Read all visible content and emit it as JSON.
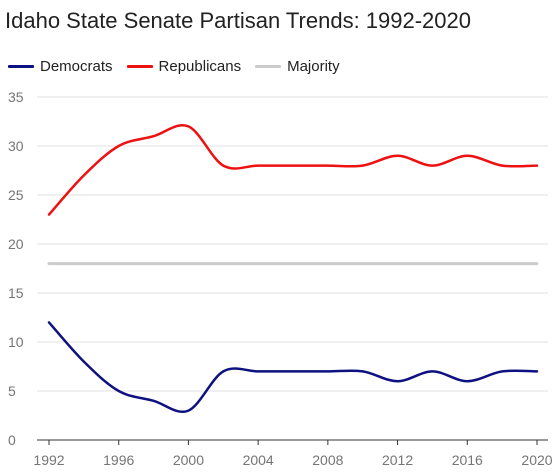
{
  "chart_data": {
    "type": "line",
    "title": "Idaho State Senate Partisan Trends: 1992-2020",
    "xlabel": "",
    "ylabel": "",
    "x": [
      1992,
      1994,
      1996,
      1998,
      2000,
      2002,
      2004,
      2006,
      2008,
      2010,
      2012,
      2014,
      2016,
      2018,
      2020
    ],
    "x_ticks": [
      "1992",
      "1996",
      "2000",
      "2004",
      "2008",
      "2012",
      "2016",
      "2020"
    ],
    "y_ticks": [
      "0",
      "5",
      "10",
      "15",
      "20",
      "25",
      "30",
      "35"
    ],
    "xlim": [
      1992,
      2020
    ],
    "ylim": [
      0,
      35
    ],
    "grid": true,
    "legend_position": "top-left",
    "series": [
      {
        "name": "Democrats",
        "color": "#0d1280",
        "values": [
          12,
          8,
          5,
          4,
          3,
          7,
          7,
          7,
          7,
          7,
          6,
          7,
          6,
          7,
          7
        ]
      },
      {
        "name": "Republicans",
        "color": "#ee1111",
        "values": [
          23,
          27,
          30,
          31,
          32,
          28,
          28,
          28,
          28,
          28,
          29,
          28,
          29,
          28,
          28
        ]
      },
      {
        "name": "Majority",
        "color": "#cccccc",
        "values": [
          18,
          18,
          18,
          18,
          18,
          18,
          18,
          18,
          18,
          18,
          18,
          18,
          18,
          18,
          18
        ]
      }
    ]
  }
}
